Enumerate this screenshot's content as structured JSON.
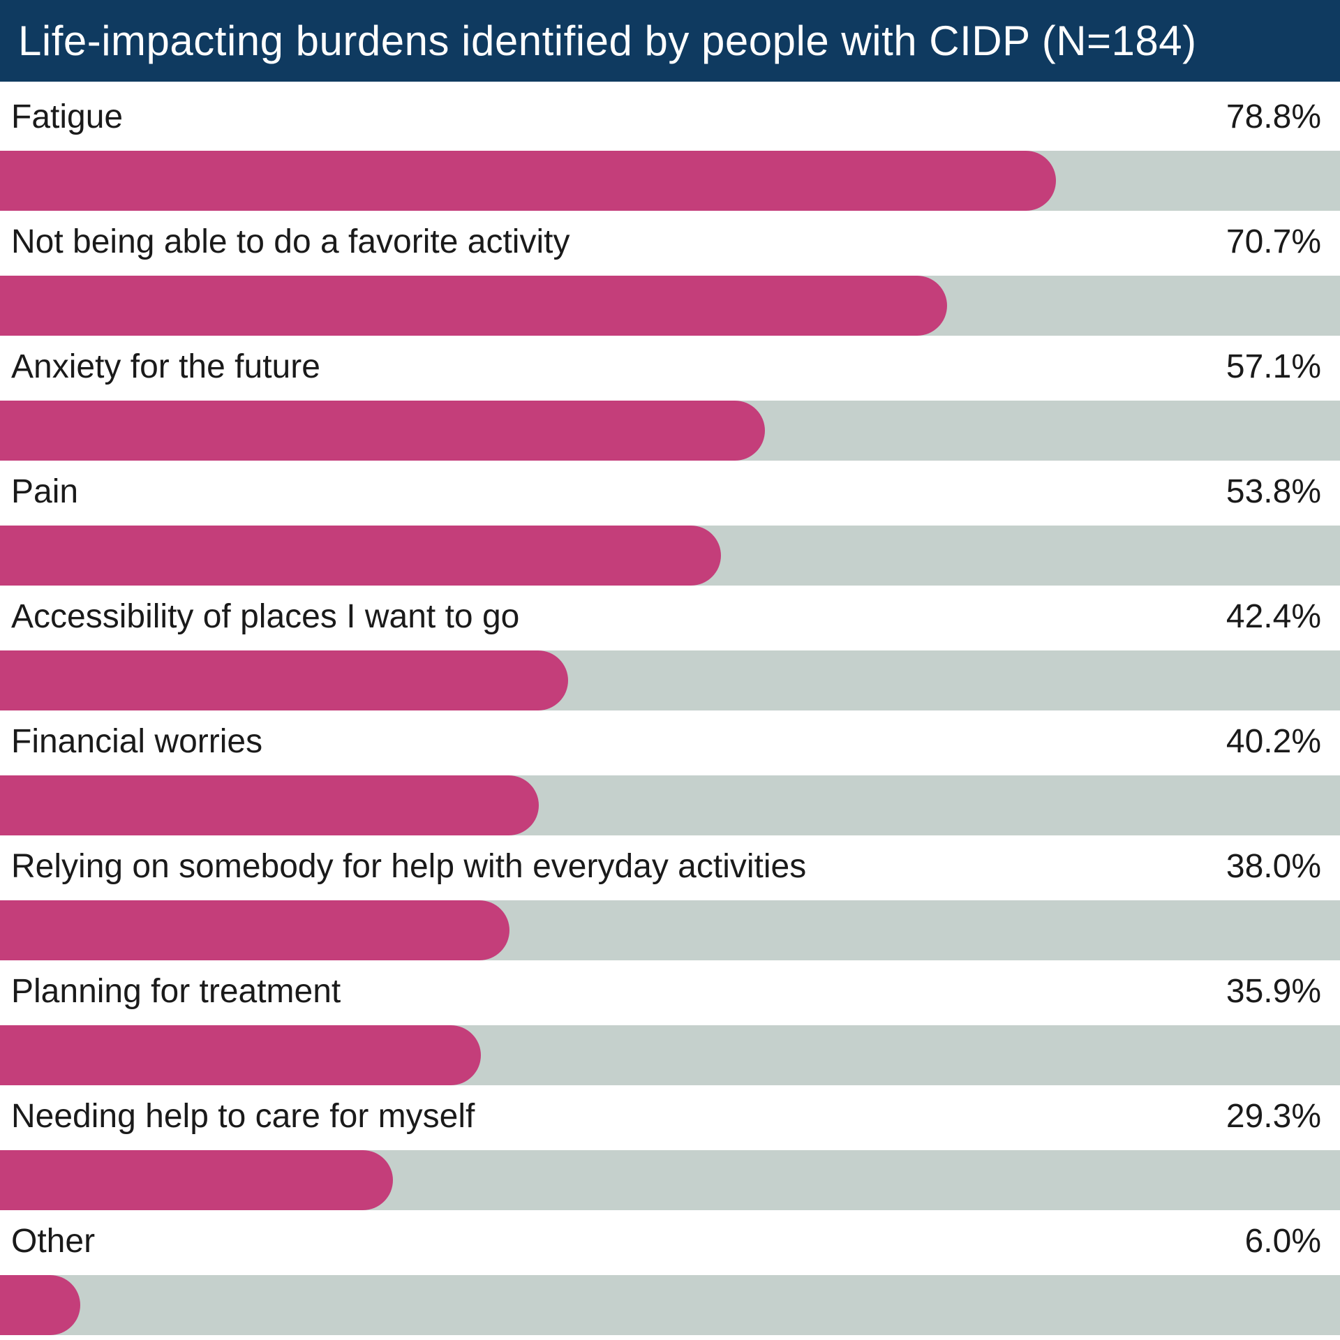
{
  "chart_data": {
    "type": "bar",
    "orientation": "horizontal",
    "title": "Life-impacting burdens identified by people with CIDP (N=184)",
    "categories": [
      "Fatigue",
      "Not being able to do a favorite activity",
      "Anxiety for the future",
      "Pain",
      "Accessibility of places I want to go",
      "Financial worries",
      "Relying on somebody for help with everyday activities",
      "Planning for treatment",
      "Needing help to care for myself",
      "Other"
    ],
    "values": [
      78.8,
      70.7,
      57.1,
      53.8,
      42.4,
      40.2,
      38.0,
      35.9,
      29.3,
      6.0
    ],
    "value_labels": [
      "78.8%",
      "70.7%",
      "57.1%",
      "53.8%",
      "42.4%",
      "40.2%",
      "38.0%",
      "35.9%",
      "29.3%",
      "6.0%"
    ],
    "xlim": [
      0,
      100
    ],
    "grid": false,
    "legend": "none",
    "colors": {
      "title_bg": "#0f3a60",
      "bar": "#c43e7a",
      "track": "#c5d0cc",
      "title_text": "#ffffff"
    }
  }
}
